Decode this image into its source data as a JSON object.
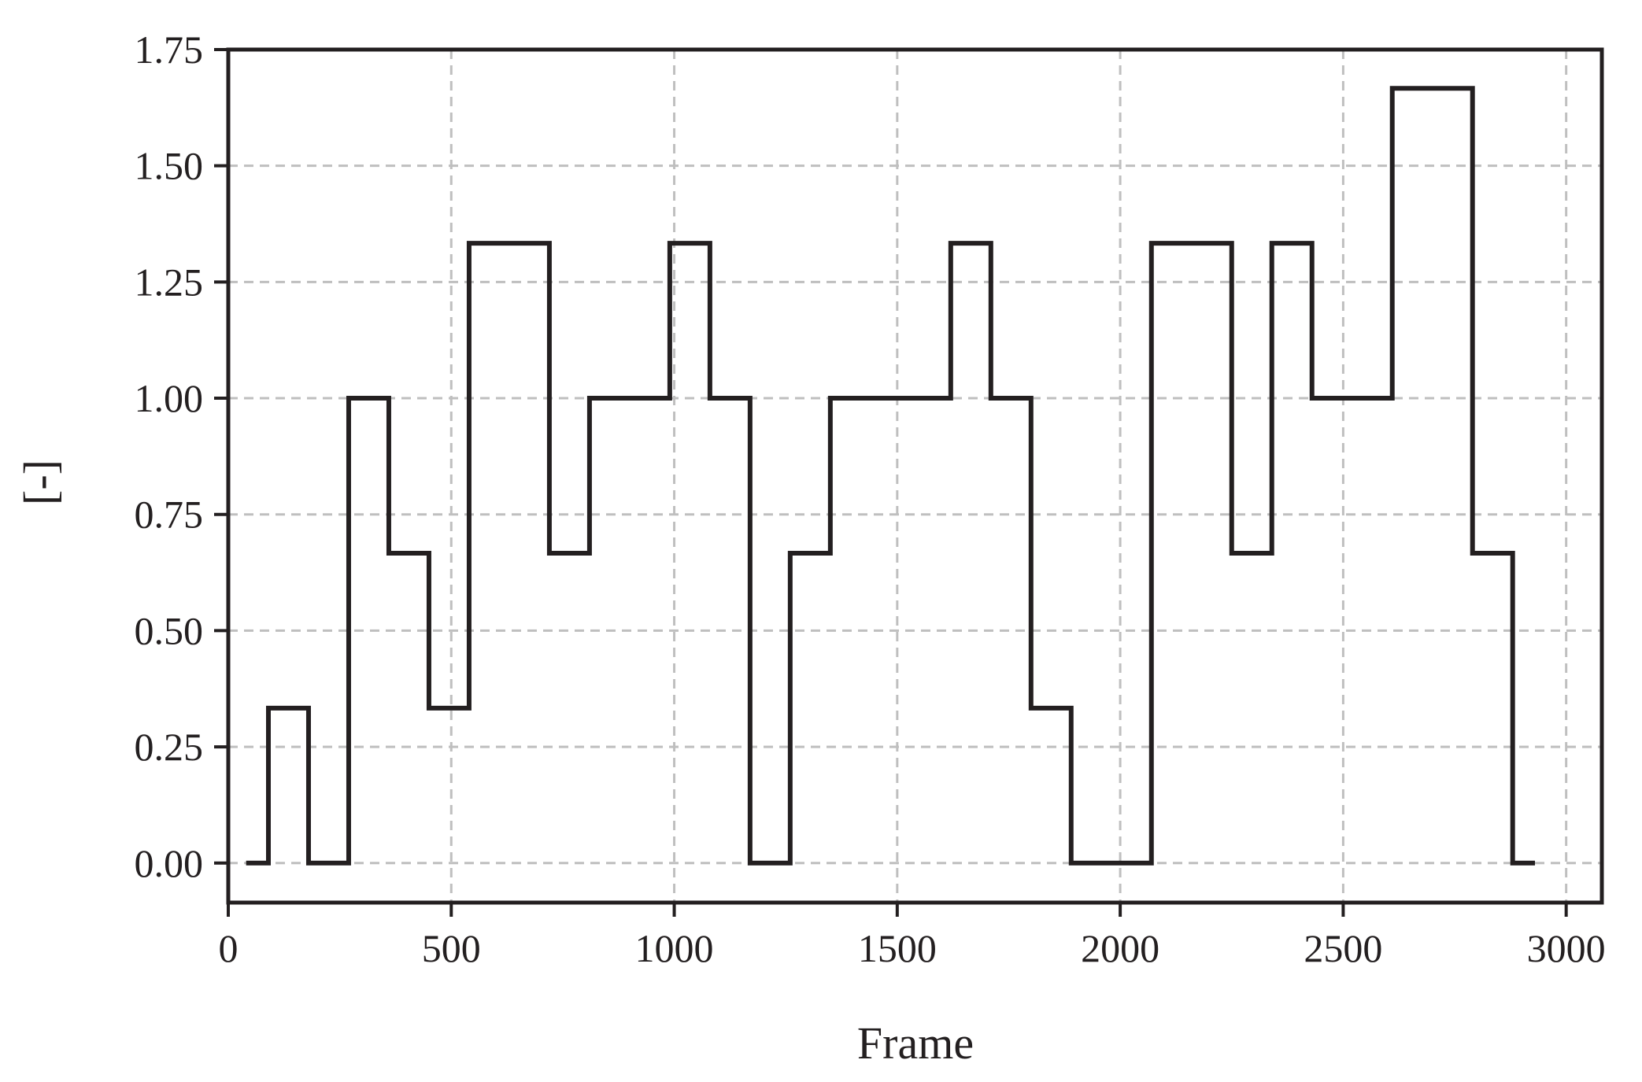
{
  "chart_data": {
    "type": "line",
    "step": "post",
    "title": "",
    "xlabel": "Frame",
    "ylabel": "[-]",
    "xlim": [
      0,
      3080
    ],
    "ylim": [
      -0.085,
      1.75
    ],
    "grid": true,
    "x_ticks": [
      0,
      500,
      1000,
      1500,
      2000,
      2500,
      3000
    ],
    "x_tick_labels": [
      "0",
      "500",
      "1000",
      "1500",
      "2000",
      "2500",
      "3000"
    ],
    "y_ticks": [
      0.0,
      0.25,
      0.5,
      0.75,
      1.0,
      1.25,
      1.5,
      1.75
    ],
    "y_tick_labels": [
      "0.00",
      "0.25",
      "0.50",
      "0.75",
      "1.00",
      "1.25",
      "1.50",
      "1.75"
    ],
    "colors": {
      "line": "#231f20",
      "grid": "#bfbfbf",
      "axes": "#231f20"
    },
    "series": [
      {
        "x": [
          40,
          90,
          180,
          270,
          360,
          450,
          540,
          720,
          810,
          990,
          1080,
          1170,
          1260,
          1350,
          1620,
          1710,
          1800,
          1890,
          2070,
          2250,
          2340,
          2430,
          2610,
          2790,
          2880,
          2930
        ],
        "y": [
          0,
          0.3333,
          0,
          1.0,
          0.6667,
          0.3333,
          1.3333,
          0.6667,
          1.0,
          1.3333,
          1.0,
          0,
          0.6667,
          1.0,
          1.3333,
          1.0,
          0.3333,
          0,
          1.3333,
          0.6667,
          1.3333,
          1.0,
          1.6667,
          0.6667,
          0,
          0
        ]
      }
    ]
  }
}
